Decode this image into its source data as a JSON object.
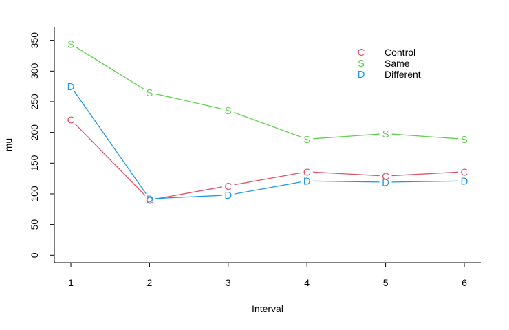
{
  "chart_data": {
    "type": "line",
    "title": "",
    "xlabel": "Interval",
    "ylabel": "mu",
    "x": [
      1,
      2,
      3,
      4,
      5,
      6
    ],
    "xlim": [
      0.79,
      6.21
    ],
    "ylim": [
      -12,
      372
    ],
    "yticks": [
      0,
      50,
      100,
      150,
      200,
      250,
      300,
      350
    ],
    "grid": false,
    "legend_position": "top-right",
    "series": [
      {
        "name": "Control",
        "symbol": "C",
        "color": "#DF536B",
        "values": [
          221,
          90,
          113,
          136,
          129,
          136
        ]
      },
      {
        "name": "Same",
        "symbol": "S",
        "color": "#61D04F",
        "values": [
          344,
          265,
          236,
          189,
          198,
          189
        ]
      },
      {
        "name": "Different",
        "symbol": "D",
        "color": "#2297E6",
        "values": [
          275,
          92,
          98,
          121,
          119,
          121
        ]
      }
    ]
  }
}
